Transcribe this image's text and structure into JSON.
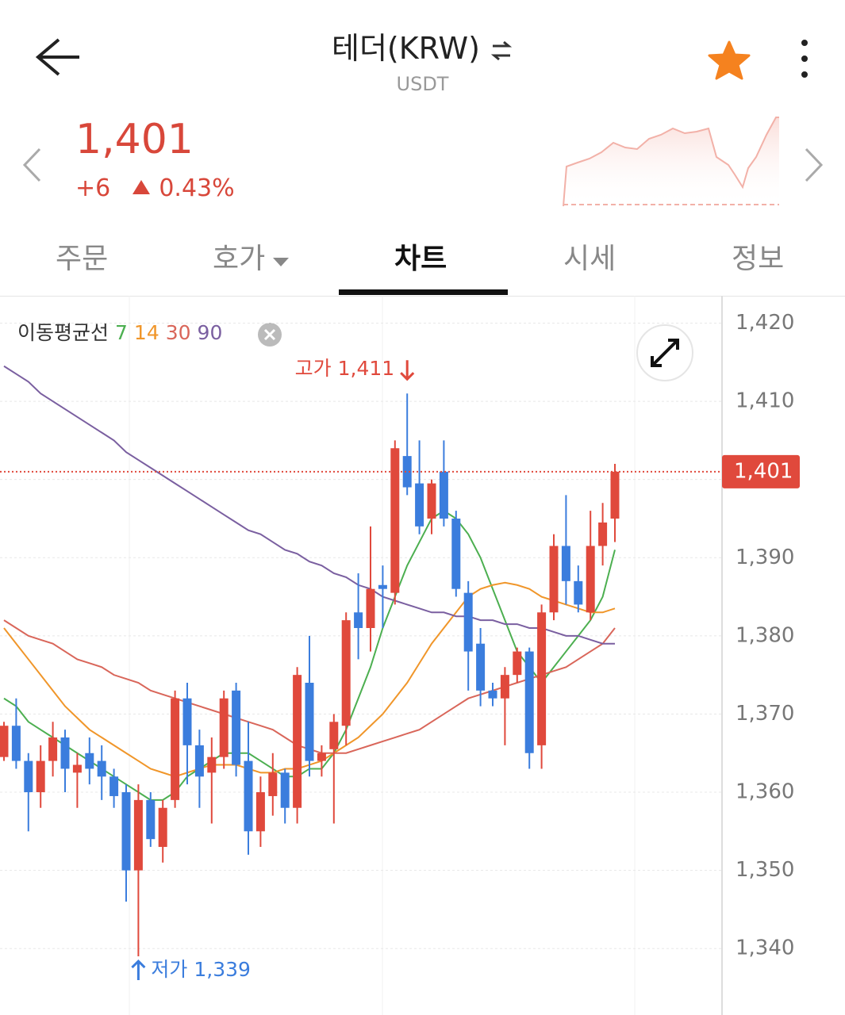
{
  "header": {
    "title": "테더(KRW)",
    "subtitle": "USDT"
  },
  "price": {
    "value": "1,401",
    "change": "+6",
    "change_rate": "0.43%"
  },
  "tabs": [
    "주문",
    "호가",
    "차트",
    "시세",
    "정보"
  ],
  "chart_data": {
    "type": "candlestick",
    "legend_title": "이동평균선",
    "up_color": "#e0493c",
    "down_color": "#3b7ddd",
    "open": [
      1364.5,
      1368.5,
      1364,
      1360,
      1364,
      1367,
      1362.5,
      1365,
      1364,
      1362,
      1360,
      1350,
      1359,
      1353,
      1359,
      1372,
      1366,
      1362.5,
      1364.5,
      1373,
      1364,
      1355,
      1359.5,
      1362.5,
      1358,
      1374,
      1364,
      1365.5,
      1368.5,
      1383,
      1381,
      1386.5,
      1385.5,
      1403,
      1399.5,
      1395,
      1401,
      1395,
      1385.5,
      1379,
      1373,
      1372,
      1375,
      1378,
      1366,
      1383,
      1391.5,
      1387,
      1383,
      1391.5,
      1395
    ],
    "high": [
      1369,
      1372,
      1365,
      1366,
      1369,
      1368,
      1365,
      1367,
      1366,
      1363,
      1361,
      1361,
      1360,
      1359,
      1373,
      1374,
      1368,
      1367,
      1373,
      1374,
      1369,
      1362,
      1365,
      1363,
      1376,
      1380,
      1366,
      1370,
      1383,
      1388,
      1394,
      1389,
      1405,
      1411,
      1405,
      1400,
      1405,
      1396,
      1387,
      1381,
      1374,
      1376,
      1378.5,
      1378.5,
      1384,
      1393,
      1398,
      1389,
      1396,
      1397,
      1402
    ],
    "low": [
      1364,
      1363,
      1355,
      1358,
      1362,
      1360,
      1358,
      1361,
      1359,
      1358,
      1346,
      1339,
      1353,
      1351,
      1358,
      1361,
      1358,
      1356,
      1363,
      1362,
      1352,
      1353,
      1357,
      1356,
      1356,
      1362,
      1362,
      1356,
      1366,
      1377,
      1378,
      1381,
      1384,
      1398,
      1393,
      1393,
      1394,
      1385,
      1373,
      1371,
      1371,
      1366,
      1374,
      1363,
      1363,
      1382,
      1384,
      1383,
      1382,
      1389,
      1392
    ],
    "close": [
      1368.5,
      1364,
      1360,
      1364,
      1367,
      1363,
      1363.5,
      1363,
      1362,
      1359.5,
      1350,
      1359,
      1354,
      1358,
      1372,
      1366,
      1362,
      1364.5,
      1372,
      1363.5,
      1355,
      1360,
      1362.5,
      1358,
      1375,
      1364,
      1365,
      1369,
      1382,
      1381,
      1386,
      1386,
      1404,
      1399,
      1394,
      1399.5,
      1395,
      1386,
      1378,
      1373,
      1372,
      1375,
      1378,
      1365,
      1383,
      1391.5,
      1387,
      1384,
      1391.5,
      1394.5,
      1401
    ],
    "series": [
      {
        "name": "7",
        "color": "#4caf50",
        "values": [
          1372,
          1371,
          1369,
          1368,
          1367,
          1366,
          1365,
          1364,
          1363,
          1362,
          1361,
          1360,
          1359,
          1359,
          1360,
          1362,
          1363,
          1364,
          1365,
          1365,
          1365,
          1364,
          1363,
          1362,
          1362,
          1363,
          1363,
          1365,
          1368,
          1372,
          1376,
          1381,
          1385,
          1389,
          1392,
          1395,
          1396,
          1395,
          1393,
          1390,
          1386,
          1382,
          1378,
          1376,
          1374,
          1376,
          1378,
          1380,
          1382,
          1385,
          1391
        ]
      },
      {
        "name": "14",
        "color": "#f0962a",
        "values": [
          1381,
          1379,
          1377,
          1375,
          1373,
          1371,
          1369.5,
          1368,
          1367,
          1366,
          1365,
          1364,
          1363,
          1362.5,
          1362,
          1362.5,
          1363,
          1363.5,
          1363.5,
          1363.5,
          1363,
          1362.5,
          1362.5,
          1363,
          1363,
          1363.5,
          1364,
          1365,
          1366,
          1367,
          1368.5,
          1370,
          1372,
          1374,
          1376.5,
          1379,
          1381,
          1383,
          1385,
          1386,
          1386.5,
          1386.8,
          1386.5,
          1386,
          1385,
          1384.5,
          1384,
          1383.5,
          1383,
          1383,
          1383.5
        ]
      },
      {
        "name": "30",
        "color": "#d9665a",
        "values": [
          1382,
          1381,
          1380,
          1379.5,
          1379,
          1378,
          1377,
          1376.5,
          1376,
          1375,
          1374.5,
          1374,
          1373,
          1372.5,
          1372,
          1371.5,
          1371,
          1370.5,
          1370,
          1369.5,
          1369,
          1368.5,
          1368,
          1367,
          1366,
          1365.5,
          1365,
          1365,
          1365,
          1365.5,
          1366,
          1366.5,
          1367,
          1367.5,
          1368,
          1369,
          1370,
          1371,
          1372,
          1372.5,
          1373,
          1373.5,
          1374,
          1374.5,
          1375,
          1375.5,
          1376,
          1377,
          1378,
          1379,
          1381
        ]
      },
      {
        "name": "90",
        "color": "#7a5fa0",
        "values": [
          1414.5,
          1413.5,
          1412.5,
          1411,
          1410,
          1409,
          1408,
          1407,
          1406,
          1405,
          1403.5,
          1402.5,
          1401.5,
          1400.5,
          1399.5,
          1398.5,
          1397.5,
          1396.5,
          1395.5,
          1394.5,
          1393.5,
          1393,
          1392,
          1391,
          1390.5,
          1389.5,
          1389,
          1388,
          1387.5,
          1386.5,
          1386,
          1385,
          1384.5,
          1384,
          1383.5,
          1383,
          1383,
          1382.5,
          1382.5,
          1382,
          1382,
          1381.5,
          1381.5,
          1381,
          1381,
          1380.5,
          1380,
          1380,
          1379.5,
          1379,
          1379
        ]
      }
    ],
    "ylim": [
      1331.5,
      1423.5
    ],
    "yticks": [
      {
        "value": 1340,
        "label": "1,340"
      },
      {
        "value": 1350,
        "label": "1,350"
      },
      {
        "value": 1360,
        "label": "1,360"
      },
      {
        "value": 1370,
        "label": "1,370"
      },
      {
        "value": 1380,
        "label": "1,380"
      },
      {
        "value": 1390,
        "label": "1,390"
      },
      {
        "value": 1400,
        "label": "1,400"
      },
      {
        "value": 1410,
        "label": "1,410"
      },
      {
        "value": 1420,
        "label": "1,420"
      }
    ],
    "grid": true,
    "current": {
      "value": 1401,
      "label": "1,401"
    },
    "high_marker": {
      "value": 1411,
      "label": "고가 1,411"
    },
    "low_marker": {
      "value": 1339,
      "label": "저가 1,339"
    }
  }
}
